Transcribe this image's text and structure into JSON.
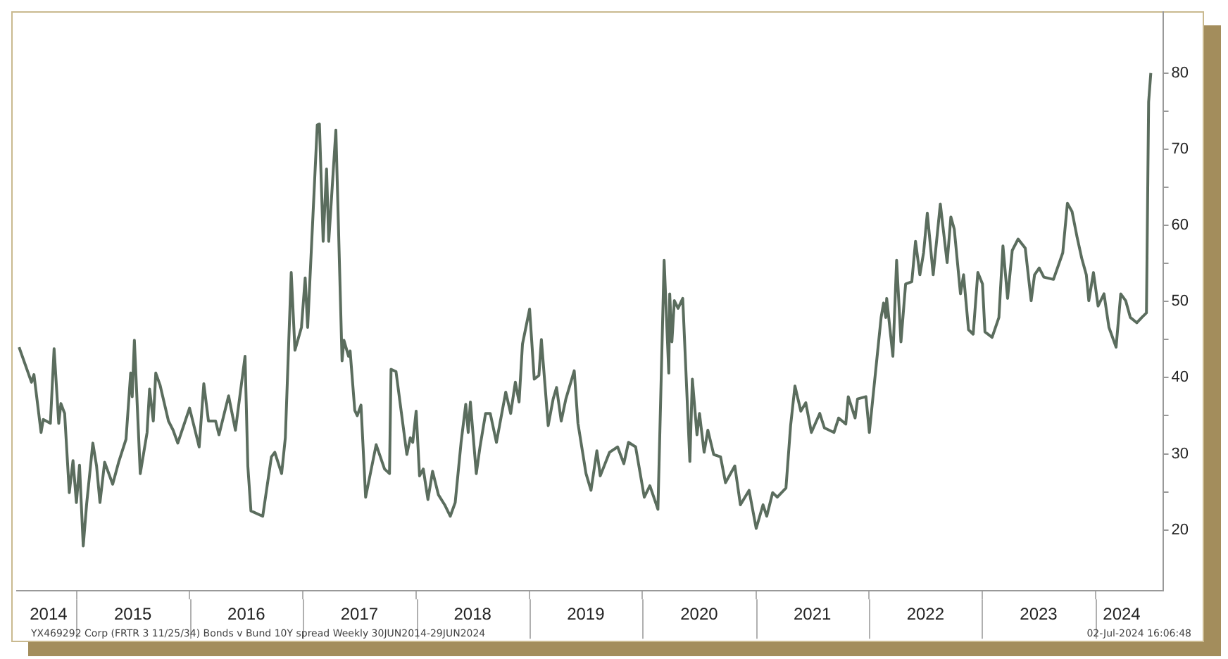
{
  "chart_data": {
    "type": "line",
    "color": "#5b6d5e",
    "marker": "none",
    "x": [
      "2014-06-30",
      "2014-08-09",
      "2014-08-17",
      "2014-09-09",
      "2014-09-16",
      "2014-10-09",
      "2014-10-21",
      "2014-11-05",
      "2014-11-12",
      "2014-11-24",
      "2014-12-09",
      "2014-12-21",
      "2015-01-01",
      "2015-01-11",
      "2015-01-23",
      "2015-02-03",
      "2015-02-23",
      "2015-03-07",
      "2015-03-18",
      "2015-04-02",
      "2015-04-28",
      "2015-05-18",
      "2015-06-10",
      "2015-06-25",
      "2015-06-30",
      "2015-07-07",
      "2015-07-26",
      "2015-08-17",
      "2015-08-25",
      "2015-09-06",
      "2015-09-14",
      "2015-09-28",
      "2015-10-25",
      "2015-11-09",
      "2015-11-24",
      "2016-01-01",
      "2016-02-01",
      "2016-02-16",
      "2016-03-02",
      "2016-03-25",
      "2016-04-05",
      "2016-05-06",
      "2016-05-28",
      "2016-06-28",
      "2016-07-07",
      "2016-07-17",
      "2016-08-24",
      "2016-09-21",
      "2016-10-02",
      "2016-10-24",
      "2016-11-05",
      "2016-11-24",
      "2016-12-06",
      "2016-12-27",
      "2017-01-08",
      "2017-01-16",
      "2017-02-16",
      "2017-02-23",
      "2017-03-07",
      "2017-03-18",
      "2017-03-25",
      "2017-04-17",
      "2017-05-07",
      "2017-05-13",
      "2017-05-28",
      "2017-06-02",
      "2017-06-17",
      "2017-06-25",
      "2017-07-07",
      "2017-07-22",
      "2017-08-25",
      "2017-09-21",
      "2017-10-07",
      "2017-10-12",
      "2017-10-28",
      "2017-12-02",
      "2017-12-13",
      "2017-12-21",
      "2018-01-01",
      "2018-01-12",
      "2018-01-24",
      "2018-02-08",
      "2018-02-23",
      "2018-03-14",
      "2018-04-03",
      "2018-04-21",
      "2018-05-07",
      "2018-05-26",
      "2018-06-10",
      "2018-06-18",
      "2018-06-25",
      "2018-07-14",
      "2018-07-26",
      "2018-08-13",
      "2018-08-28",
      "2018-09-17",
      "2018-10-17",
      "2018-11-02",
      "2018-11-17",
      "2018-11-29",
      "2018-12-10",
      "2019-01-02",
      "2019-01-17",
      "2019-02-01",
      "2019-02-09",
      "2019-03-03",
      "2019-03-19",
      "2019-03-30",
      "2019-04-14",
      "2019-04-29",
      "2019-05-26",
      "2019-06-07",
      "2019-07-03",
      "2019-07-19",
      "2019-08-07",
      "2019-08-18",
      "2019-09-17",
      "2019-10-13",
      "2019-11-02",
      "2019-11-17",
      "2019-12-10",
      "2020-01-07",
      "2020-01-25",
      "2020-02-20",
      "2020-03-11",
      "2020-03-26",
      "2020-03-29",
      "2020-04-05",
      "2020-04-13",
      "2020-04-25",
      "2020-05-10",
      "2020-06-02",
      "2020-06-10",
      "2020-06-25",
      "2020-07-03",
      "2020-07-18",
      "2020-07-30",
      "2020-08-18",
      "2020-09-09",
      "2020-09-25",
      "2020-10-25",
      "2020-11-12",
      "2020-12-10",
      "2021-01-02",
      "2021-01-24",
      "2021-02-05",
      "2021-02-24",
      "2021-03-11",
      "2021-04-08",
      "2021-04-23",
      "2021-05-07",
      "2021-05-26",
      "2021-06-11",
      "2021-06-29",
      "2021-07-26",
      "2021-08-10",
      "2021-09-10",
      "2021-09-25",
      "2021-10-18",
      "2021-10-26",
      "2021-11-17",
      "2021-11-25",
      "2021-12-22",
      "2022-01-02",
      "2022-02-09",
      "2022-02-17",
      "2022-02-24",
      "2022-02-27",
      "2022-03-19",
      "2022-03-31",
      "2022-04-14",
      "2022-04-29",
      "2022-05-19",
      "2022-05-31",
      "2022-06-14",
      "2022-06-26",
      "2022-07-08",
      "2022-07-27",
      "2022-08-19",
      "2022-09-10",
      "2022-09-22",
      "2022-10-03",
      "2022-10-23",
      "2022-11-02",
      "2022-11-18",
      "2022-12-03",
      "2022-12-18",
      "2023-01-02",
      "2023-01-10",
      "2023-02-02",
      "2023-02-24",
      "2023-03-09",
      "2023-03-24",
      "2023-04-08",
      "2023-04-27",
      "2023-05-20",
      "2023-06-08",
      "2023-06-19",
      "2023-07-04",
      "2023-07-19",
      "2023-08-19",
      "2023-09-18",
      "2023-10-03",
      "2023-10-18",
      "2023-11-03",
      "2023-11-18",
      "2023-12-03",
      "2023-12-11",
      "2023-12-26",
      "2024-01-10",
      "2024-01-29",
      "2024-02-14",
      "2024-03-08",
      "2024-03-23",
      "2024-04-08",
      "2024-04-23",
      "2024-05-14",
      "2024-05-30",
      "2024-06-14",
      "2024-06-21",
      "2024-06-28"
    ],
    "values": [
      44,
      39.4,
      40.4,
      32.8,
      34.5,
      34,
      43.8,
      34,
      36.6,
      35.3,
      24.9,
      29.1,
      23.6,
      28.5,
      17.9,
      23.4,
      31.4,
      28.4,
      23.6,
      28.9,
      26,
      29,
      31.9,
      40.6,
      37.5,
      44.9,
      27.4,
      32.8,
      38.5,
      34.3,
      40.6,
      39,
      34.3,
      33.1,
      31.4,
      36,
      30.9,
      39.2,
      34.3,
      34.3,
      32.5,
      37.6,
      33.1,
      42.8,
      28.4,
      22.5,
      21.8,
      29.6,
      30.2,
      27.4,
      32.1,
      53.8,
      43.6,
      46.6,
      53.1,
      46.6,
      73.2,
      73.3,
      57.9,
      67.4,
      57.9,
      72.5,
      42.2,
      44.9,
      42.8,
      43.5,
      35.7,
      35,
      36.4,
      24.3,
      31.2,
      28,
      27.4,
      41.1,
      40.8,
      29.9,
      32.1,
      31.5,
      35.6,
      27.1,
      28,
      24,
      27.7,
      24.6,
      23.3,
      21.8,
      23.6,
      31.5,
      36.5,
      32.8,
      36.8,
      27.4,
      30.9,
      35.3,
      35.3,
      31.5,
      38.1,
      35.3,
      39.4,
      36.8,
      44.4,
      49,
      39.8,
      40.3,
      45,
      33.7,
      37.2,
      38.7,
      34.3,
      37.2,
      40.9,
      34,
      27.4,
      25.2,
      30.4,
      27.1,
      30.2,
      30.9,
      28.7,
      31.5,
      30.9,
      24.3,
      25.8,
      22.7,
      55.4,
      40.6,
      51,
      44.7,
      50.1,
      49.1,
      50.4,
      29,
      39.8,
      32.5,
      35.3,
      30.2,
      33.1,
      29.9,
      29.6,
      26.2,
      28.4,
      23.3,
      25.2,
      20.2,
      23.3,
      21.8,
      24.9,
      24.3,
      25.5,
      33.7,
      38.9,
      35.6,
      36.7,
      32.8,
      35.3,
      33.4,
      32.8,
      34.7,
      33.9,
      37.5,
      34.7,
      37.2,
      37.5,
      32.8,
      47.9,
      49.8,
      47.9,
      50.4,
      42.8,
      55.4,
      44.7,
      52.3,
      52.6,
      57.9,
      53.5,
      56.4,
      61.6,
      53.5,
      62.8,
      55.1,
      61.1,
      59.5,
      51,
      53.5,
      46.3,
      45.7,
      53.8,
      52.3,
      46,
      45.3,
      47.9,
      57.3,
      50.4,
      56.7,
      58.2,
      57,
      50.1,
      53.5,
      54.4,
      53.2,
      52.9,
      56.4,
      62.9,
      61.8,
      58.5,
      55.7,
      53.5,
      50.1,
      53.8,
      49.4,
      51,
      46.6,
      44,
      51,
      50.1,
      47.9,
      47.2,
      47.9,
      48.5,
      76.2,
      80
    ],
    "xlim": [
      "2014-06-23",
      "2024-08-06"
    ],
    "xticks": [
      {
        "value": "2014-10-03",
        "label": "2014"
      },
      {
        "value": "2015-01-01",
        "label": null
      },
      {
        "value": "2015-07-02",
        "label": "2015"
      },
      {
        "value": "2016-01-01",
        "label": null
      },
      {
        "value": "2016-07-02",
        "label": "2016"
      },
      {
        "value": "2017-01-01",
        "label": null
      },
      {
        "value": "2017-07-02",
        "label": "2017"
      },
      {
        "value": "2018-01-01",
        "label": null
      },
      {
        "value": "2018-07-02",
        "label": "2018"
      },
      {
        "value": "2019-01-01",
        "label": null
      },
      {
        "value": "2019-07-02",
        "label": "2019"
      },
      {
        "value": "2020-01-01",
        "label": null
      },
      {
        "value": "2020-07-02",
        "label": "2020"
      },
      {
        "value": "2021-01-01",
        "label": null
      },
      {
        "value": "2021-07-02",
        "label": "2021"
      },
      {
        "value": "2022-01-01",
        "label": null
      },
      {
        "value": "2022-07-02",
        "label": "2022"
      },
      {
        "value": "2023-01-01",
        "label": null
      },
      {
        "value": "2023-07-02",
        "label": "2023"
      },
      {
        "value": "2024-01-01",
        "label": null
      },
      {
        "value": "2024-03-26",
        "label": "2024"
      }
    ],
    "ylim": [
      12,
      88
    ],
    "yticks": [
      20,
      {
        "value": 25,
        "label": null
      },
      30,
      {
        "value": 35,
        "label": null
      },
      40,
      {
        "value": 45,
        "label": null
      },
      50,
      {
        "value": 55,
        "label": null
      },
      60,
      {
        "value": 65,
        "label": null
      },
      70,
      {
        "value": 75,
        "label": null
      },
      80
    ],
    "annotations": [
      "YX469292 Corp (FRTR 3 11/25/34) Bonds v Bund 10Y spread  Weekly 30JUN2014-29JUN2024",
      "02-Jul-2024 16:06:48"
    ]
  }
}
